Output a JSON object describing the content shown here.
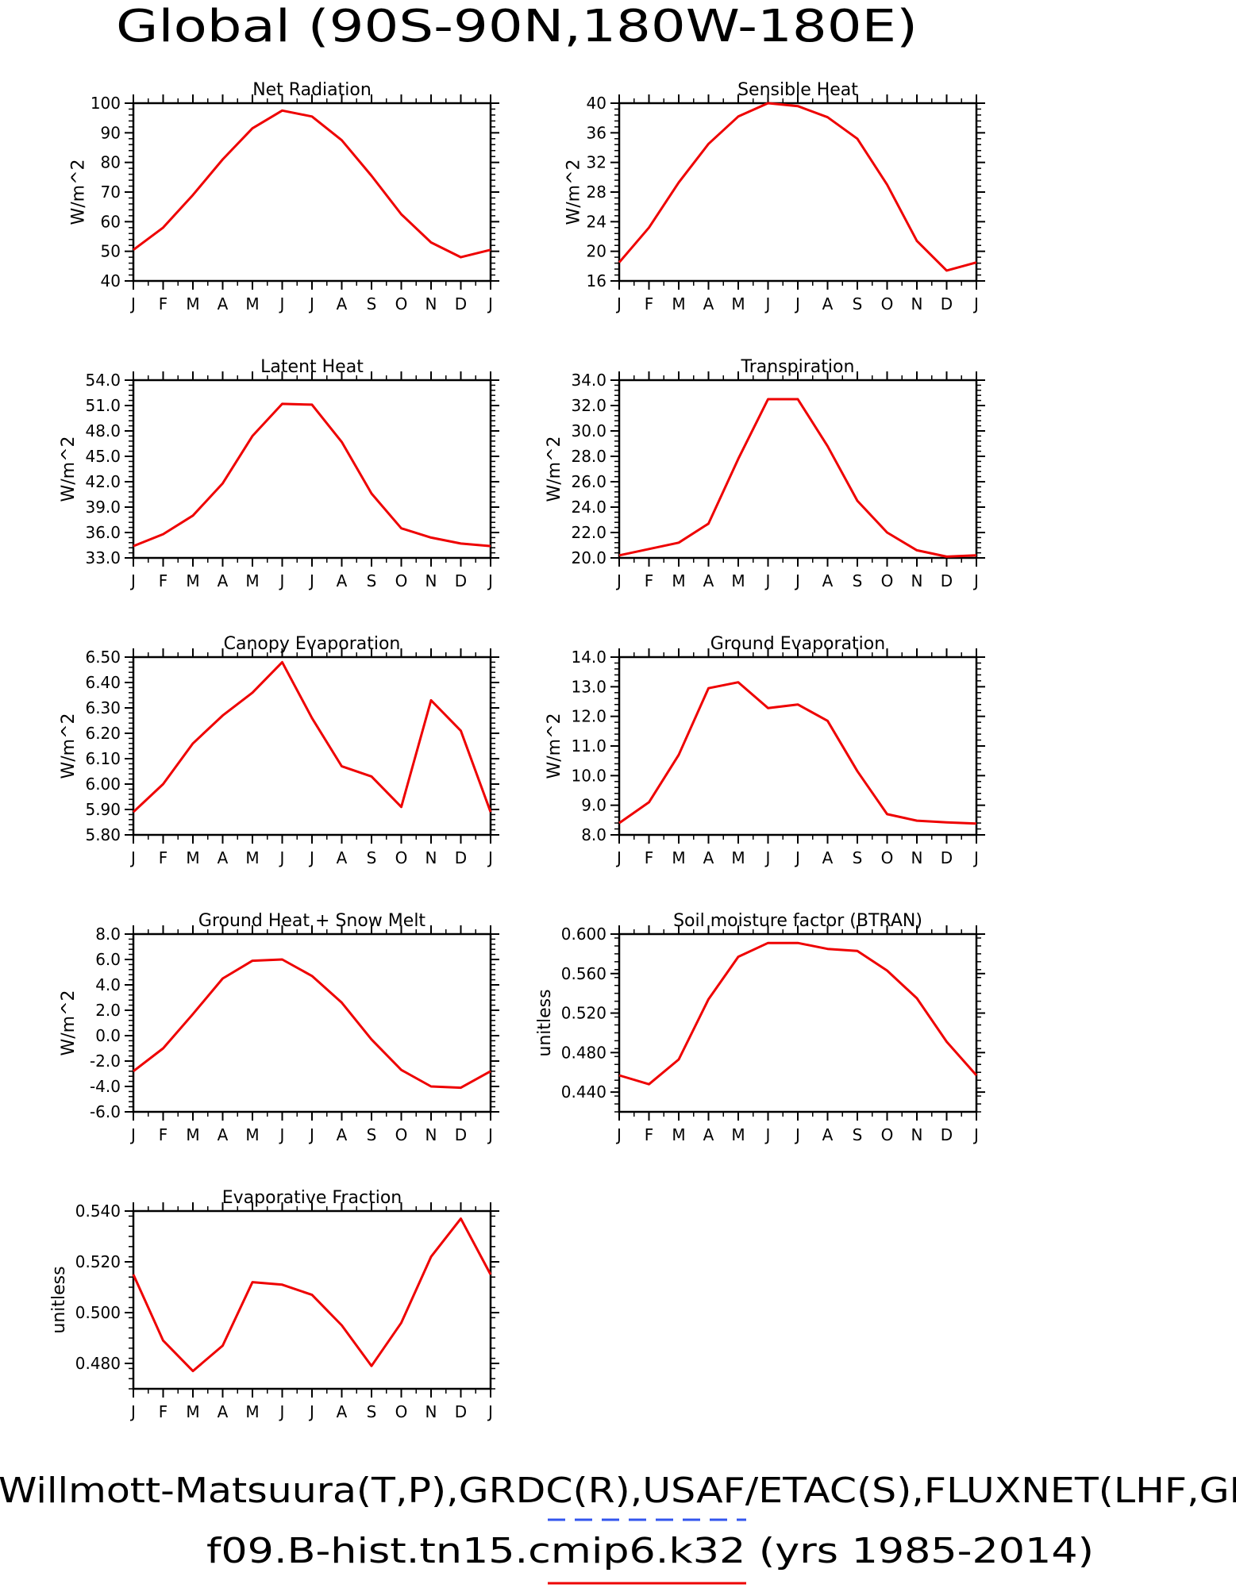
{
  "header": {
    "title": "Global (90S-90N,180W-180E)"
  },
  "footer": {
    "line1": "Willmott-Matsuura(T,P),GRDC(R),USAF/ETAC(S),FLUXNET(LHF,GI",
    "line2": "f09.B-hist.tn15.cmip6.k32 (yrs 1985-2014)",
    "dashed_color": "#3355ee",
    "solid_color": "#ee0000"
  },
  "months": [
    "J",
    "F",
    "M",
    "A",
    "M",
    "J",
    "J",
    "A",
    "S",
    "O",
    "N",
    "D",
    "J"
  ],
  "line_color": "#ee0000",
  "chart_data": [
    {
      "type": "line",
      "title": "Net Radiation",
      "ylabel": "W/m^2",
      "ylim": [
        40,
        100
      ],
      "yticks": [
        "40",
        "50",
        "60",
        "70",
        "80",
        "90",
        "100"
      ],
      "series": [
        {
          "values": [
            50.5,
            58,
            69,
            81,
            91.5,
            97.5,
            95.5,
            87.5,
            75.5,
            62.5,
            53,
            48,
            50.5
          ]
        }
      ]
    },
    {
      "type": "line",
      "title": "Sensible Heat",
      "ylabel": "W/m^2",
      "ylim": [
        16,
        40
      ],
      "yticks": [
        "16",
        "20",
        "24",
        "28",
        "32",
        "36",
        "40"
      ],
      "series": [
        {
          "values": [
            18.5,
            23.2,
            29.3,
            34.5,
            38.2,
            40.0,
            39.6,
            38.1,
            35.2,
            29.0,
            21.4,
            17.4,
            18.5
          ]
        }
      ]
    },
    {
      "type": "line",
      "title": "Latent Heat",
      "ylabel": "W/m^2",
      "ylim": [
        33.0,
        54.0
      ],
      "yticks": [
        "33.0",
        "36.0",
        "39.0",
        "42.0",
        "45.0",
        "48.0",
        "51.0",
        "54.0"
      ],
      "series": [
        {
          "values": [
            34.4,
            35.8,
            38.0,
            41.8,
            47.4,
            51.2,
            51.1,
            46.7,
            40.6,
            36.5,
            35.4,
            34.7,
            34.4
          ]
        }
      ]
    },
    {
      "type": "line",
      "title": "Transpiration",
      "ylabel": "W/m^2",
      "ylim": [
        20.0,
        34.0
      ],
      "yticks": [
        "20.0",
        "22.0",
        "24.0",
        "26.0",
        "28.0",
        "30.0",
        "32.0",
        "34.0"
      ],
      "series": [
        {
          "values": [
            20.2,
            20.7,
            21.2,
            22.7,
            27.8,
            32.5,
            32.5,
            28.8,
            24.5,
            22.0,
            20.6,
            20.1,
            20.2
          ]
        }
      ]
    },
    {
      "type": "line",
      "title": "Canopy Evaporation",
      "ylabel": "W/m^2",
      "ylim": [
        5.8,
        6.5
      ],
      "yticks": [
        "5.80",
        "5.90",
        "6.00",
        "6.10",
        "6.20",
        "6.30",
        "6.40",
        "6.50"
      ],
      "series": [
        {
          "values": [
            5.89,
            6.0,
            6.16,
            6.27,
            6.36,
            6.48,
            6.26,
            6.07,
            6.03,
            5.91,
            6.33,
            6.21,
            5.89
          ]
        }
      ]
    },
    {
      "type": "line",
      "title": "Ground Evaporation",
      "ylabel": "W/m^2",
      "ylim": [
        8.0,
        14.0
      ],
      "yticks": [
        "8.0",
        "9.0",
        "10.0",
        "11.0",
        "12.0",
        "13.0",
        "14.0"
      ],
      "series": [
        {
          "values": [
            8.4,
            9.1,
            10.7,
            12.95,
            13.15,
            12.28,
            12.4,
            11.85,
            10.15,
            8.7,
            8.48,
            8.42,
            8.38
          ]
        }
      ]
    },
    {
      "type": "line",
      "title": "Ground Heat + Snow Melt",
      "ylabel": "W/m^2",
      "ylim": [
        -6.0,
        8.0
      ],
      "yticks": [
        "-6.0",
        "-4.0",
        "-2.0",
        "0.0",
        "2.0",
        "4.0",
        "6.0",
        "8.0"
      ],
      "series": [
        {
          "values": [
            -2.8,
            -1.0,
            1.7,
            4.5,
            5.9,
            6.0,
            4.7,
            2.6,
            -0.3,
            -2.7,
            -4.0,
            -4.1,
            -2.8
          ]
        }
      ]
    },
    {
      "type": "line",
      "title": "Soil moisture factor (BTRAN)",
      "ylabel": "unitless",
      "ylim": [
        0.42,
        0.6
      ],
      "yticks": [
        "0.440",
        "0.480",
        "0.520",
        "0.560",
        "0.600"
      ],
      "series": [
        {
          "values": [
            0.457,
            0.448,
            0.473,
            0.534,
            0.577,
            0.591,
            0.591,
            0.585,
            0.583,
            0.563,
            0.535,
            0.491,
            0.457
          ]
        }
      ]
    },
    {
      "type": "line",
      "title": "Evaporative Fraction",
      "ylabel": "unitless",
      "ylim": [
        0.47,
        0.54
      ],
      "yticks": [
        "0.480",
        "0.500",
        "0.520",
        "0.540"
      ],
      "series": [
        {
          "values": [
            0.515,
            0.489,
            0.477,
            0.487,
            0.512,
            0.511,
            0.507,
            0.495,
            0.479,
            0.496,
            0.522,
            0.537,
            0.515
          ]
        }
      ]
    }
  ]
}
